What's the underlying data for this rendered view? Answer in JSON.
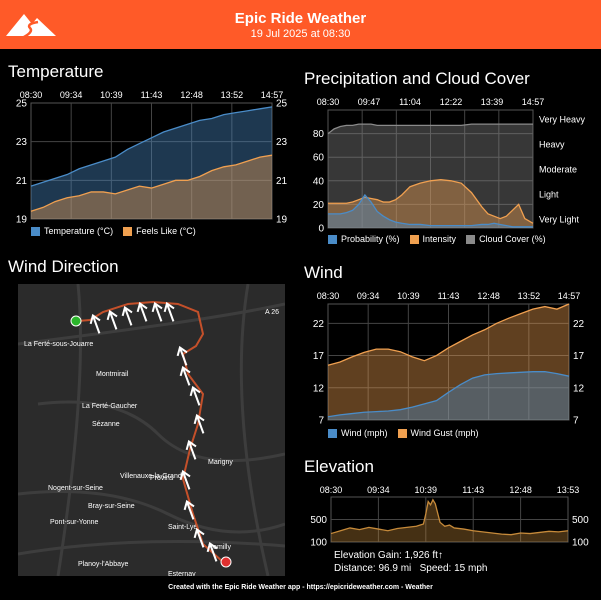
{
  "header": {
    "title": "Epic Ride Weather",
    "subtitle": "19 Jul 2025 at 08:30",
    "accent": "#ff5a28"
  },
  "sections": {
    "temperature": "Temperature",
    "precip": "Precipitation and Cloud Cover",
    "wind_dir": "Wind Direction",
    "wind": "Wind",
    "elevation": "Elevation"
  },
  "temperature": {
    "times": [
      "08:30",
      "09:34",
      "10:39",
      "11:43",
      "12:48",
      "13:52",
      "14:57"
    ],
    "chart_data": {
      "type": "area",
      "title": "Temperature",
      "x": [
        0,
        0.05,
        0.1,
        0.15,
        0.2,
        0.25,
        0.3,
        0.35,
        0.4,
        0.45,
        0.5,
        0.55,
        0.6,
        0.65,
        0.7,
        0.75,
        0.8,
        0.85,
        0.9,
        0.95,
        1
      ],
      "series": [
        {
          "name": "Temperature (°C)",
          "color": "#4a8cc8",
          "values": [
            20.7,
            20.9,
            21.1,
            21.3,
            21.6,
            21.8,
            22.0,
            22.2,
            22.6,
            22.9,
            23.2,
            23.5,
            23.7,
            23.9,
            24.1,
            24.2,
            24.4,
            24.5,
            24.6,
            24.7,
            24.8
          ]
        },
        {
          "name": "Feels Like (°C)",
          "color": "#f0a050",
          "values": [
            19.4,
            19.6,
            19.9,
            20.1,
            20.2,
            20.4,
            20.4,
            20.3,
            20.5,
            20.7,
            20.6,
            20.8,
            21.0,
            21.0,
            21.2,
            21.5,
            21.7,
            21.8,
            22.0,
            22.2,
            22.3
          ]
        }
      ],
      "ylim": [
        19,
        25
      ],
      "yticks": [
        "19",
        "21",
        "23",
        "25"
      ]
    }
  },
  "precip": {
    "times": [
      "08:30",
      "09:47",
      "11:04",
      "12:22",
      "13:39",
      "14:57"
    ],
    "chart_data": {
      "type": "area",
      "title": "Precipitation and Cloud Cover",
      "x": [
        0,
        0.03,
        0.06,
        0.09,
        0.12,
        0.15,
        0.18,
        0.21,
        0.24,
        0.27,
        0.3,
        0.33,
        0.36,
        0.4,
        0.45,
        0.5,
        0.55,
        0.6,
        0.65,
        0.7,
        0.75,
        0.78,
        0.81,
        0.84,
        0.87,
        0.9,
        0.93,
        0.96,
        1
      ],
      "series": [
        {
          "name": "Probability (%)",
          "color": "#4a8cc8",
          "values": [
            12,
            12,
            12,
            13,
            15,
            20,
            28,
            22,
            14,
            10,
            7,
            5,
            4,
            3,
            3,
            2,
            2,
            2,
            2,
            2,
            3,
            3,
            4,
            3,
            2,
            1,
            1,
            1,
            1
          ]
        },
        {
          "name": "Intensity",
          "color": "#f0a050",
          "values": [
            21,
            21,
            21,
            21,
            22,
            24,
            26,
            25,
            24,
            22,
            22,
            24,
            28,
            35,
            38,
            40,
            41,
            40,
            38,
            30,
            18,
            12,
            10,
            8,
            10,
            15,
            20,
            8,
            4
          ]
        },
        {
          "name": "Cloud Cover (%)",
          "color": "#8a8a8a",
          "values": [
            80,
            84,
            86,
            87,
            87,
            88,
            88,
            88,
            87,
            87,
            87,
            87,
            87,
            87,
            87,
            87,
            87,
            87,
            87,
            88,
            88,
            88,
            88,
            88,
            88,
            88,
            88,
            88,
            88
          ]
        }
      ],
      "ylim": [
        0,
        100
      ],
      "yticks": [
        "0",
        "20",
        "40",
        "60",
        "80"
      ],
      "right_labels": [
        "Very Light",
        "Light",
        "Moderate",
        "Heavy",
        "Very Heavy"
      ]
    }
  },
  "wind": {
    "times": [
      "08:30",
      "09:34",
      "10:39",
      "11:43",
      "12:48",
      "13:52",
      "14:57"
    ],
    "chart_data": {
      "type": "area",
      "title": "Wind",
      "x": [
        0,
        0.05,
        0.1,
        0.15,
        0.2,
        0.25,
        0.3,
        0.35,
        0.4,
        0.45,
        0.5,
        0.55,
        0.6,
        0.65,
        0.7,
        0.75,
        0.8,
        0.85,
        0.9,
        0.95,
        1
      ],
      "series": [
        {
          "name": "Wind (mph)",
          "color": "#4a8cc8",
          "values": [
            7.5,
            7.8,
            8.0,
            8.2,
            8.3,
            8.4,
            8.6,
            9.0,
            9.5,
            10.0,
            11.3,
            12.5,
            13.5,
            14.0,
            14.2,
            14.3,
            14.4,
            14.5,
            14.5,
            14.2,
            13.8
          ]
        },
        {
          "name": "Wind Gust (mph)",
          "color": "#f0a050",
          "values": [
            15.5,
            16.0,
            16.8,
            17.5,
            18.0,
            18.0,
            17.6,
            16.8,
            16.2,
            17.0,
            18.2,
            19.2,
            20.2,
            21.0,
            22.0,
            22.8,
            23.5,
            24.2,
            24.6,
            24.2,
            25.0
          ]
        }
      ],
      "ylim": [
        7,
        25
      ],
      "yticks": [
        "7",
        "12",
        "17",
        "22"
      ]
    }
  },
  "elevation": {
    "times": [
      "08:30",
      "09:34",
      "10:39",
      "11:43",
      "12:48",
      "13:53"
    ],
    "chart_data": {
      "type": "area",
      "title": "Elevation",
      "x": [
        0,
        0.04,
        0.08,
        0.12,
        0.16,
        0.2,
        0.24,
        0.28,
        0.32,
        0.36,
        0.39,
        0.4,
        0.41,
        0.42,
        0.43,
        0.44,
        0.46,
        0.48,
        0.5,
        0.52,
        0.56,
        0.6,
        0.64,
        0.68,
        0.72,
        0.76,
        0.8,
        0.84,
        0.88,
        0.92,
        0.96,
        1
      ],
      "series": [
        {
          "name": "Elevation",
          "color": "#c68a3a",
          "values": [
            250,
            300,
            350,
            320,
            360,
            330,
            300,
            340,
            360,
            380,
            420,
            600,
            820,
            760,
            850,
            780,
            450,
            380,
            400,
            350,
            330,
            300,
            280,
            260,
            240,
            230,
            260,
            250,
            270,
            290,
            280,
            300
          ]
        }
      ],
      "ylim": [
        100,
        900
      ],
      "yticks": [
        "100",
        "500"
      ]
    },
    "stats": {
      "gain": "Elevation Gain: 1,926 ft↑",
      "distance": "Distance: 96.9 mi",
      "speed": "Speed: 15 mph"
    }
  },
  "map": {
    "labels": [
      "A 26",
      "La Ferté-sous-Jouarre",
      "Montmirail",
      "La Ferté-Gaucher",
      "Sézanne",
      "Villenauxe-la-Grande",
      "Provins",
      "Nogent-sur-Seine",
      "Bray-sur-Seine",
      "Pont-sur-Yonne",
      "Planoy-l'Abbaye",
      "Marigny",
      "Saint-Lyé",
      "Romilly",
      "Esternay"
    ],
    "start_color": "#2bb52b",
    "end_color": "#e03030"
  },
  "footer": "Created with the Epic Ride Weather app - https://epicrideweather.com - Weather"
}
